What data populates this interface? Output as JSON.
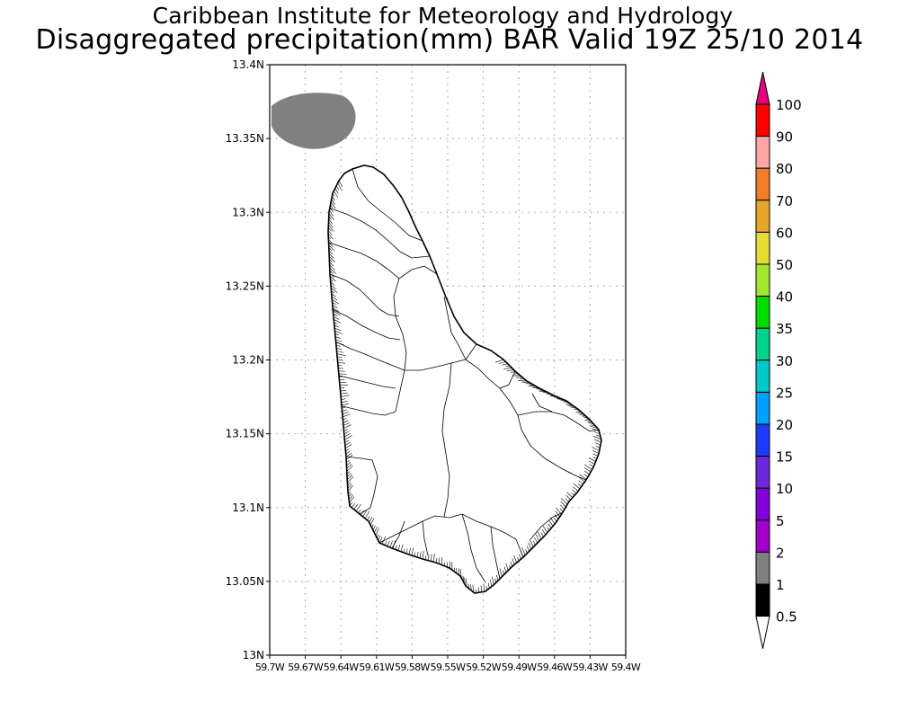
{
  "title": {
    "line1": "Caribbean Institute for Meteorology and Hydrology",
    "line2": "Disaggregated precipitation(mm) BAR Valid 19Z 25/10 2014"
  },
  "map": {
    "lat_range": [
      13.0,
      13.4
    ],
    "lon_range": [
      -59.7,
      -59.4
    ],
    "grid": true,
    "lat_ticks": [
      {
        "value": 13.4,
        "label": "13.4N"
      },
      {
        "value": 13.35,
        "label": "13.35N"
      },
      {
        "value": 13.3,
        "label": "13.3N"
      },
      {
        "value": 13.25,
        "label": "13.25N"
      },
      {
        "value": 13.2,
        "label": "13.2N"
      },
      {
        "value": 13.15,
        "label": "13.15N"
      },
      {
        "value": 13.1,
        "label": "13.1N"
      },
      {
        "value": 13.05,
        "label": "13.05N"
      },
      {
        "value": 13.0,
        "label": "13N"
      }
    ],
    "lon_ticks": [
      {
        "value": -59.7,
        "label": "59.7W"
      },
      {
        "value": -59.67,
        "label": "59.67W"
      },
      {
        "value": -59.64,
        "label": "59.64W"
      },
      {
        "value": -59.61,
        "label": "59.61W"
      },
      {
        "value": -59.58,
        "label": "59.58W"
      },
      {
        "value": -59.55,
        "label": "59.55W"
      },
      {
        "value": -59.52,
        "label": "59.52W"
      },
      {
        "value": -59.49,
        "label": "59.49W"
      },
      {
        "value": -59.46,
        "label": "59.46W"
      },
      {
        "value": -59.43,
        "label": "59.43W"
      },
      {
        "value": -59.4,
        "label": "59.4W"
      }
    ],
    "precip_area": {
      "category": "0.5-1",
      "color": "#808080"
    }
  },
  "legend": {
    "arrow_top_color": "#e6007e",
    "arrow_bottom_color": "#ffffff",
    "levels": [
      {
        "label": "100",
        "color": "#ff3a46"
      },
      {
        "label": "90",
        "color": "#ff0000"
      },
      {
        "label": "80",
        "color": "#ffa6a6"
      },
      {
        "label": "70",
        "color": "#f07d28"
      },
      {
        "label": "60",
        "color": "#e6a52d"
      },
      {
        "label": "50",
        "color": "#e6dc32"
      },
      {
        "label": "40",
        "color": "#a0e632"
      },
      {
        "label": "35",
        "color": "#00dc00"
      },
      {
        "label": "30",
        "color": "#00d28c"
      },
      {
        "label": "25",
        "color": "#00c8c8"
      },
      {
        "label": "20",
        "color": "#00a0ff"
      },
      {
        "label": "15",
        "color": "#1e3cff"
      },
      {
        "label": "10",
        "color": "#6e28dc"
      },
      {
        "label": "5",
        "color": "#8200dc"
      },
      {
        "label": "2",
        "color": "#a000c8"
      },
      {
        "label": "1",
        "color": "#808080"
      },
      {
        "label": "0.5",
        "color": null
      }
    ]
  }
}
